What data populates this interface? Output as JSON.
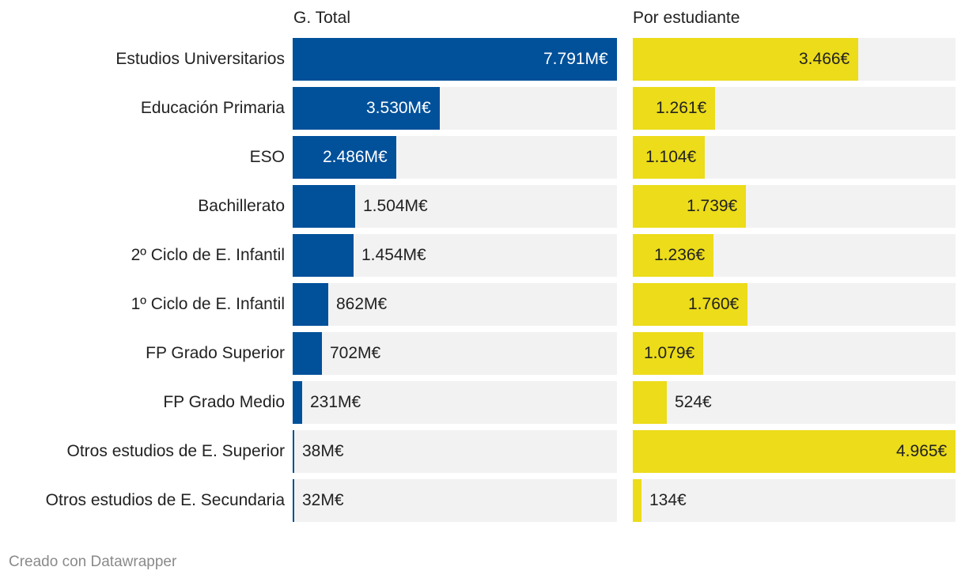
{
  "footer": "Creado con Datawrapper",
  "colors": {
    "total": "#00509a",
    "per_student": "#ecdc1a",
    "track": "#f2f2f2"
  },
  "chart_data": [
    {
      "type": "bar",
      "orientation": "horizontal",
      "title": "G. Total",
      "categories": [
        "Estudios Universitarios",
        "Educación Primaria",
        "ESO",
        "Bachillerato",
        "2º Ciclo de E. Infantil",
        "1º Ciclo de E. Infantil",
        "FP Grado Superior",
        "FP Grado Medio",
        "Otros estudios de E. Superior",
        "Otros estudios de E. Secundaria"
      ],
      "values": [
        7791,
        3530,
        2486,
        1504,
        1454,
        862,
        702,
        231,
        38,
        32
      ],
      "labels": [
        "7.791M€",
        "3.530M€",
        "2.486M€",
        "1.504M€",
        "1.454M€",
        "862M€",
        "702M€",
        "231M€",
        "38M€",
        "32M€"
      ],
      "xlim": [
        0,
        7791
      ],
      "color": "#00509a"
    },
    {
      "type": "bar",
      "orientation": "horizontal",
      "title": "Por estudiante",
      "categories": [
        "Estudios Universitarios",
        "Educación Primaria",
        "ESO",
        "Bachillerato",
        "2º Ciclo de E. Infantil",
        "1º Ciclo de E. Infantil",
        "FP Grado Superior",
        "FP Grado Medio",
        "Otros estudios de E. Superior",
        "Otros estudios de E. Secundaria"
      ],
      "values": [
        3466,
        1261,
        1104,
        1739,
        1236,
        1760,
        1079,
        524,
        4965,
        134
      ],
      "labels": [
        "3.466€",
        "1.261€",
        "1.104€",
        "1.739€",
        "1.236€",
        "1.760€",
        "1.079€",
        "524€",
        "4.965€",
        "134€"
      ],
      "xlim": [
        0,
        4965
      ],
      "color": "#ecdc1a"
    }
  ]
}
